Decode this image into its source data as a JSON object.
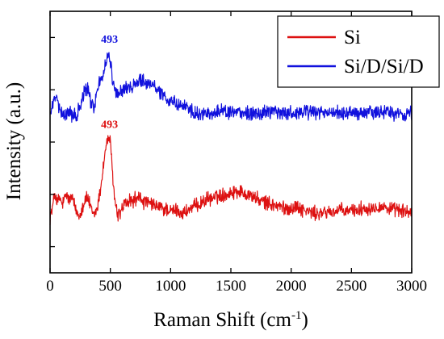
{
  "chart_data": {
    "type": "line",
    "title": "",
    "xlabel": "Raman Shift (cm",
    "xlabel_sup": "-1",
    "xlabel_close": ")",
    "ylabel": "Intensity (a.u.)",
    "xlim": [
      0,
      3000
    ],
    "ylim": [
      0,
      3
    ],
    "x_ticks": [
      0,
      500,
      1000,
      1500,
      2000,
      2500,
      3000
    ],
    "x_tick_labels": [
      "0",
      "500",
      "1000",
      "1500",
      "2000",
      "2500",
      "3000"
    ],
    "y_ticks": [
      0.3,
      0.9,
      1.5,
      2.1,
      2.7
    ],
    "y_tick_labels": [],
    "grid": false,
    "legend_position": "top-right",
    "series": [
      {
        "name": "Si",
        "color": "#dd1111",
        "points": [
          [
            0,
            0.64
          ],
          [
            20,
            0.74
          ],
          [
            40,
            0.92
          ],
          [
            60,
            0.8
          ],
          [
            80,
            0.86
          ],
          [
            100,
            0.78
          ],
          [
            120,
            0.84
          ],
          [
            140,
            0.9
          ],
          [
            160,
            0.82
          ],
          [
            180,
            0.88
          ],
          [
            200,
            0.78
          ],
          [
            220,
            0.7
          ],
          [
            240,
            0.66
          ],
          [
            260,
            0.72
          ],
          [
            280,
            0.8
          ],
          [
            300,
            0.86
          ],
          [
            320,
            0.84
          ],
          [
            340,
            0.72
          ],
          [
            360,
            0.66
          ],
          [
            380,
            0.7
          ],
          [
            400,
            0.8
          ],
          [
            420,
            0.98
          ],
          [
            440,
            1.2
          ],
          [
            460,
            1.42
          ],
          [
            480,
            1.54
          ],
          [
            493,
            1.56
          ],
          [
            505,
            1.4
          ],
          [
            520,
            1.1
          ],
          [
            540,
            0.8
          ],
          [
            560,
            0.66
          ],
          [
            580,
            0.68
          ],
          [
            600,
            0.74
          ],
          [
            620,
            0.8
          ],
          [
            640,
            0.78
          ],
          [
            660,
            0.84
          ],
          [
            680,
            0.8
          ],
          [
            700,
            0.86
          ],
          [
            720,
            0.82
          ],
          [
            740,
            0.88
          ],
          [
            760,
            0.84
          ],
          [
            780,
            0.8
          ],
          [
            800,
            0.82
          ],
          [
            820,
            0.78
          ],
          [
            840,
            0.8
          ],
          [
            860,
            0.76
          ],
          [
            880,
            0.78
          ],
          [
            900,
            0.74
          ],
          [
            920,
            0.76
          ],
          [
            940,
            0.72
          ],
          [
            960,
            0.74
          ],
          [
            980,
            0.72
          ],
          [
            1000,
            0.7
          ],
          [
            1050,
            0.72
          ],
          [
            1100,
            0.68
          ],
          [
            1150,
            0.72
          ],
          [
            1200,
            0.76
          ],
          [
            1250,
            0.8
          ],
          [
            1300,
            0.84
          ],
          [
            1350,
            0.86
          ],
          [
            1400,
            0.88
          ],
          [
            1450,
            0.9
          ],
          [
            1500,
            0.92
          ],
          [
            1550,
            0.94
          ],
          [
            1600,
            0.92
          ],
          [
            1650,
            0.9
          ],
          [
            1700,
            0.86
          ],
          [
            1750,
            0.82
          ],
          [
            1800,
            0.8
          ],
          [
            1850,
            0.78
          ],
          [
            1900,
            0.76
          ],
          [
            1950,
            0.74
          ],
          [
            2000,
            0.74
          ],
          [
            2050,
            0.76
          ],
          [
            2100,
            0.72
          ],
          [
            2150,
            0.7
          ],
          [
            2200,
            0.68
          ],
          [
            2250,
            0.68
          ],
          [
            2300,
            0.7
          ],
          [
            2350,
            0.7
          ],
          [
            2400,
            0.72
          ],
          [
            2450,
            0.7
          ],
          [
            2500,
            0.72
          ],
          [
            2550,
            0.72
          ],
          [
            2600,
            0.74
          ],
          [
            2650,
            0.74
          ],
          [
            2700,
            0.76
          ],
          [
            2750,
            0.76
          ],
          [
            2800,
            0.74
          ],
          [
            2850,
            0.72
          ],
          [
            2900,
            0.72
          ],
          [
            2950,
            0.7
          ],
          [
            3000,
            0.7
          ]
        ]
      },
      {
        "name": "Si/D/Si/D",
        "color": "#1111dd",
        "points": [
          [
            0,
            1.82
          ],
          [
            20,
            1.9
          ],
          [
            40,
            2.02
          ],
          [
            60,
            1.96
          ],
          [
            80,
            1.86
          ],
          [
            100,
            1.8
          ],
          [
            120,
            1.84
          ],
          [
            140,
            1.82
          ],
          [
            160,
            1.86
          ],
          [
            180,
            1.8
          ],
          [
            200,
            1.86
          ],
          [
            220,
            1.78
          ],
          [
            240,
            1.9
          ],
          [
            260,
            1.94
          ],
          [
            280,
            2.04
          ],
          [
            300,
            2.12
          ],
          [
            320,
            2.08
          ],
          [
            340,
            1.94
          ],
          [
            360,
            1.9
          ],
          [
            380,
            2.0
          ],
          [
            400,
            2.14
          ],
          [
            420,
            2.22
          ],
          [
            440,
            2.28
          ],
          [
            460,
            2.4
          ],
          [
            480,
            2.5
          ],
          [
            493,
            2.52
          ],
          [
            505,
            2.36
          ],
          [
            520,
            2.18
          ],
          [
            540,
            2.1
          ],
          [
            560,
            2.04
          ],
          [
            580,
            2.06
          ],
          [
            600,
            2.1
          ],
          [
            620,
            2.12
          ],
          [
            640,
            2.1
          ],
          [
            660,
            2.14
          ],
          [
            680,
            2.14
          ],
          [
            700,
            2.16
          ],
          [
            720,
            2.18
          ],
          [
            740,
            2.2
          ],
          [
            760,
            2.22
          ],
          [
            780,
            2.2
          ],
          [
            800,
            2.18
          ],
          [
            820,
            2.2
          ],
          [
            840,
            2.16
          ],
          [
            860,
            2.14
          ],
          [
            880,
            2.12
          ],
          [
            900,
            2.1
          ],
          [
            920,
            2.06
          ],
          [
            940,
            2.04
          ],
          [
            960,
            2.0
          ],
          [
            980,
            2.0
          ],
          [
            1000,
            1.98
          ],
          [
            1050,
            1.94
          ],
          [
            1100,
            1.94
          ],
          [
            1150,
            1.88
          ],
          [
            1200,
            1.82
          ],
          [
            1250,
            1.8
          ],
          [
            1300,
            1.82
          ],
          [
            1350,
            1.84
          ],
          [
            1400,
            1.86
          ],
          [
            1450,
            1.84
          ],
          [
            1500,
            1.82
          ],
          [
            1550,
            1.84
          ],
          [
            1600,
            1.84
          ],
          [
            1650,
            1.82
          ],
          [
            1700,
            1.84
          ],
          [
            1750,
            1.82
          ],
          [
            1800,
            1.84
          ],
          [
            1850,
            1.86
          ],
          [
            1900,
            1.84
          ],
          [
            1950,
            1.82
          ],
          [
            2000,
            1.84
          ],
          [
            2050,
            1.82
          ],
          [
            2100,
            1.86
          ],
          [
            2150,
            1.84
          ],
          [
            2200,
            1.82
          ],
          [
            2250,
            1.84
          ],
          [
            2300,
            1.82
          ],
          [
            2350,
            1.84
          ],
          [
            2400,
            1.84
          ],
          [
            2450,
            1.82
          ],
          [
            2500,
            1.84
          ],
          [
            2550,
            1.82
          ],
          [
            2600,
            1.84
          ],
          [
            2650,
            1.84
          ],
          [
            2700,
            1.82
          ],
          [
            2750,
            1.84
          ],
          [
            2800,
            1.86
          ],
          [
            2850,
            1.82
          ],
          [
            2900,
            1.84
          ],
          [
            2950,
            1.82
          ],
          [
            3000,
            1.84
          ]
        ]
      }
    ],
    "annotations": [
      {
        "text": "493",
        "x": 493,
        "y": 2.64,
        "color": "#1111dd"
      },
      {
        "text": "493",
        "x": 493,
        "y": 1.66,
        "color": "#dd1111"
      }
    ]
  }
}
